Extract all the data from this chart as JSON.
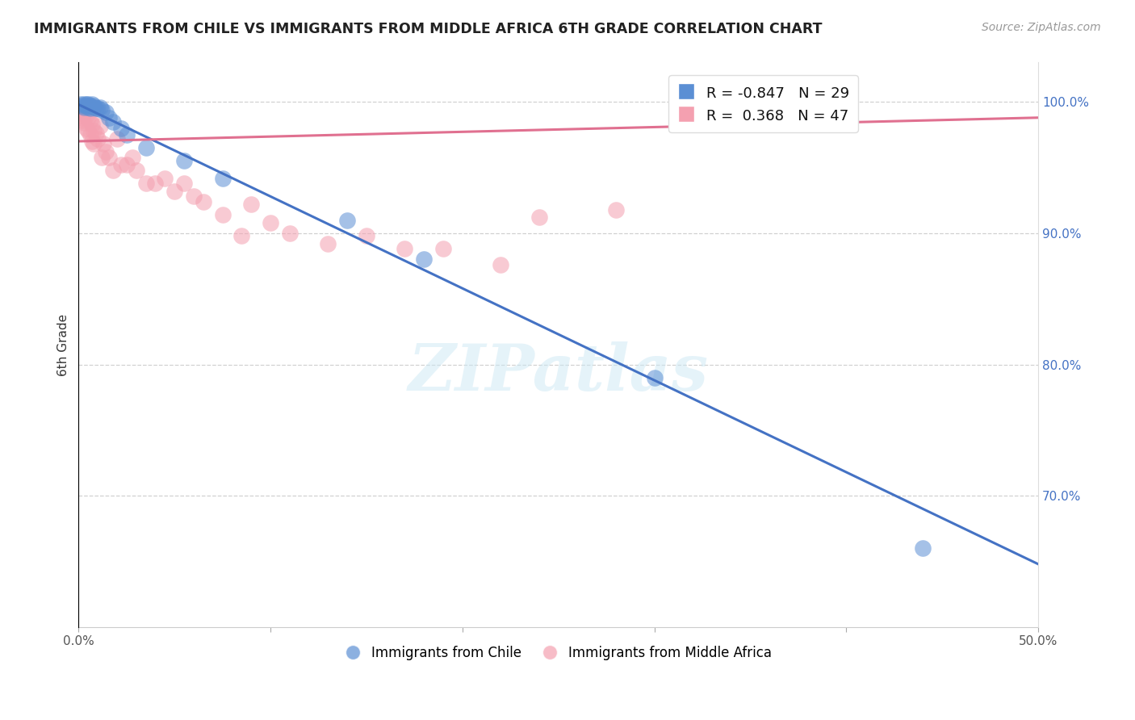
{
  "title": "IMMIGRANTS FROM CHILE VS IMMIGRANTS FROM MIDDLE AFRICA 6TH GRADE CORRELATION CHART",
  "source": "Source: ZipAtlas.com",
  "ylabel": "6th Grade",
  "xlim": [
    0.0,
    0.5
  ],
  "ylim": [
    0.6,
    1.03
  ],
  "xticks": [
    0.0,
    0.1,
    0.2,
    0.3,
    0.4,
    0.5
  ],
  "xticklabels": [
    "0.0%",
    "",
    "",
    "",
    "",
    "50.0%"
  ],
  "yticks_right": [
    0.7,
    0.8,
    0.9,
    1.0
  ],
  "yticklabels_right": [
    "70.0%",
    "80.0%",
    "90.0%",
    "100.0%"
  ],
  "chile_color": "#5b8fd4",
  "africa_color": "#f4a0b0",
  "chile_line_color": "#4472c4",
  "africa_line_color": "#e07090",
  "chile_R": -0.847,
  "chile_N": 29,
  "africa_R": 0.368,
  "africa_N": 47,
  "chile_scatter_x": [
    0.001,
    0.002,
    0.003,
    0.003,
    0.004,
    0.004,
    0.005,
    0.005,
    0.006,
    0.006,
    0.007,
    0.008,
    0.008,
    0.009,
    0.01,
    0.011,
    0.012,
    0.014,
    0.016,
    0.018,
    0.022,
    0.025,
    0.035,
    0.055,
    0.075,
    0.14,
    0.18,
    0.3,
    0.44
  ],
  "chile_scatter_y": [
    0.998,
    0.997,
    0.998,
    0.996,
    0.998,
    0.997,
    0.998,
    0.996,
    0.997,
    0.995,
    0.998,
    0.997,
    0.996,
    0.995,
    0.995,
    0.996,
    0.994,
    0.992,
    0.988,
    0.985,
    0.98,
    0.975,
    0.965,
    0.955,
    0.942,
    0.91,
    0.88,
    0.79,
    0.66
  ],
  "africa_scatter_x": [
    0.001,
    0.002,
    0.002,
    0.003,
    0.003,
    0.004,
    0.004,
    0.005,
    0.005,
    0.006,
    0.006,
    0.007,
    0.007,
    0.008,
    0.008,
    0.009,
    0.01,
    0.011,
    0.012,
    0.013,
    0.014,
    0.016,
    0.018,
    0.02,
    0.022,
    0.025,
    0.028,
    0.03,
    0.035,
    0.04,
    0.045,
    0.05,
    0.055,
    0.06,
    0.065,
    0.075,
    0.085,
    0.09,
    0.1,
    0.11,
    0.13,
    0.15,
    0.17,
    0.19,
    0.22,
    0.24,
    0.28
  ],
  "africa_scatter_y": [
    0.99,
    0.988,
    0.986,
    0.992,
    0.984,
    0.99,
    0.98,
    0.988,
    0.978,
    0.986,
    0.975,
    0.983,
    0.97,
    0.978,
    0.968,
    0.976,
    0.972,
    0.982,
    0.958,
    0.968,
    0.962,
    0.958,
    0.948,
    0.972,
    0.952,
    0.952,
    0.958,
    0.948,
    0.938,
    0.938,
    0.942,
    0.932,
    0.938,
    0.928,
    0.924,
    0.914,
    0.898,
    0.922,
    0.908,
    0.9,
    0.892,
    0.898,
    0.888,
    0.888,
    0.876,
    0.912,
    0.918
  ],
  "chile_trend_x0": 0.0,
  "chile_trend_y0": 0.998,
  "chile_trend_x1": 0.5,
  "chile_trend_y1": 0.648,
  "africa_trend_x0": 0.0,
  "africa_trend_y0": 0.97,
  "africa_trend_x1": 0.5,
  "africa_trend_y1": 0.988,
  "watermark": "ZIPatlas",
  "background_color": "#ffffff",
  "grid_color": "#cccccc",
  "legend_label_chile": "Immigrants from Chile",
  "legend_label_africa": "Immigrants from Middle Africa"
}
